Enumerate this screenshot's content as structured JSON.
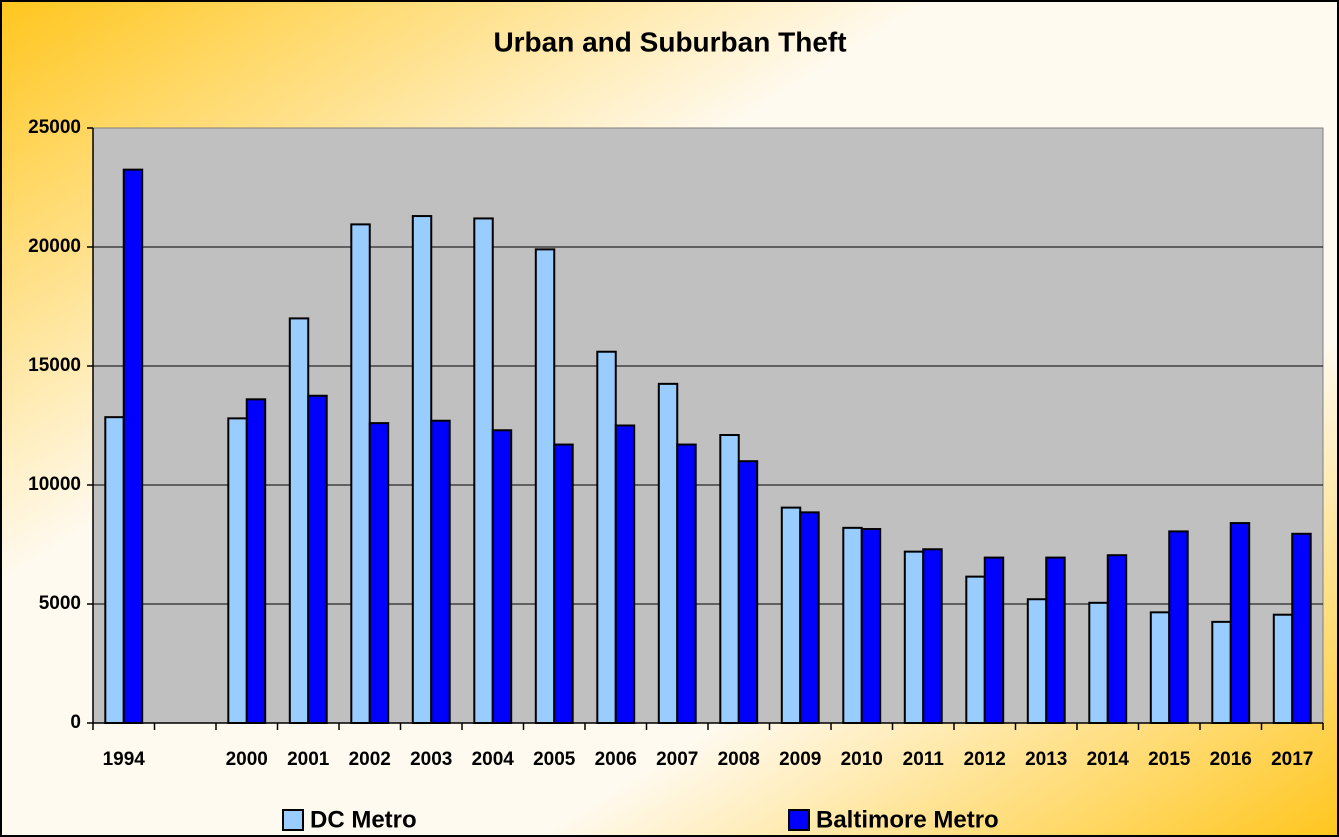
{
  "chart_data": {
    "type": "bar",
    "title": "Urban and Suburban Theft",
    "categories": [
      "1994",
      null,
      "2000",
      "2001",
      "2002",
      "2003",
      "2004",
      "2005",
      "2006",
      "2007",
      "2008",
      "2009",
      "2010",
      "2011",
      "2012",
      "2013",
      "2014",
      "2015",
      "2016",
      "2017"
    ],
    "series": [
      {
        "name": "DC Metro",
        "color": "#99ccff",
        "values": [
          12850,
          null,
          12800,
          17000,
          20950,
          21300,
          21200,
          19900,
          15600,
          14250,
          12100,
          9050,
          8200,
          7200,
          6150,
          5200,
          5050,
          4650,
          4250,
          4550
        ]
      },
      {
        "name": "Baltimore Metro",
        "color": "#0000ff",
        "values": [
          23250,
          null,
          13600,
          13750,
          12600,
          12700,
          12300,
          11700,
          12500,
          11700,
          11000,
          8850,
          8150,
          7300,
          6950,
          6950,
          7050,
          8050,
          8400,
          7950
        ]
      }
    ],
    "ylim": [
      0,
      25000
    ],
    "yticks": [
      0,
      5000,
      10000,
      15000,
      20000,
      25000
    ],
    "grid": true,
    "legend": "bottom"
  }
}
